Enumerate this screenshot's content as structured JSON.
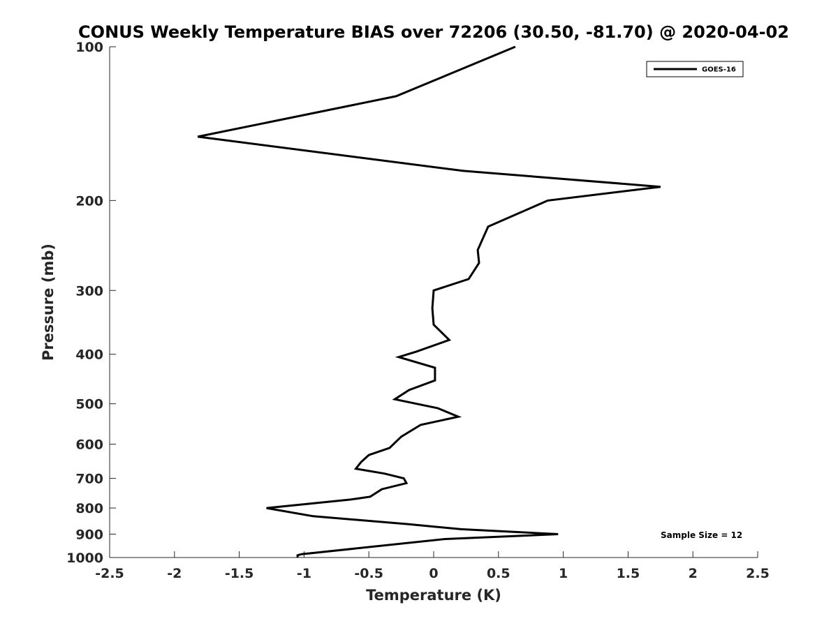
{
  "chart_data": {
    "type": "line",
    "title": "CONUS Weekly Temperature BIAS over 72206 (30.50, -81.70) @ 2020-04-02",
    "xlabel": "Temperature (K)",
    "ylabel": "Pressure (mb)",
    "xlim": [
      -2.5,
      2.5
    ],
    "ylim": [
      1000,
      100
    ],
    "y_scale": "log",
    "y_reversed": true,
    "xticks": [
      "-2.5",
      "-2",
      "-1.5",
      "-1",
      "-0.5",
      "0",
      "0.5",
      "1",
      "1.5",
      "2",
      "2.5"
    ],
    "yticks": [
      "100",
      "200",
      "300",
      "400",
      "500",
      "600",
      "700",
      "800",
      "900",
      "1000"
    ],
    "grid": false,
    "legend_position": "top-right",
    "annotation": "Sample Size = 12",
    "series": [
      {
        "name": "GOES-16",
        "color": "#000000",
        "x": [
          0.63,
          -0.29,
          -1.82,
          0.23,
          1.75,
          0.88,
          0.42,
          0.34,
          0.35,
          0.27,
          0.0,
          -0.01,
          0.0,
          0.12,
          -0.13,
          -0.27,
          0.01,
          0.01,
          -0.19,
          -0.3,
          0.03,
          0.19,
          -0.1,
          -0.25,
          -0.34,
          -0.5,
          -0.56,
          -0.6,
          -0.38,
          -0.23,
          -0.21,
          -0.4,
          -0.49,
          -0.64,
          -1.29,
          -0.93,
          -0.2,
          0.21,
          0.96,
          0.09,
          -1.02,
          -1.05,
          -1.05
        ],
        "y": [
          100,
          125,
          150,
          175,
          188,
          200,
          225,
          250,
          265,
          285,
          300,
          325,
          350,
          375,
          395,
          405,
          425,
          450,
          470,
          490,
          510,
          530,
          550,
          580,
          610,
          630,
          650,
          670,
          685,
          700,
          715,
          735,
          760,
          770,
          800,
          830,
          860,
          880,
          900,
          920,
          985,
          990,
          1000
        ]
      }
    ]
  }
}
